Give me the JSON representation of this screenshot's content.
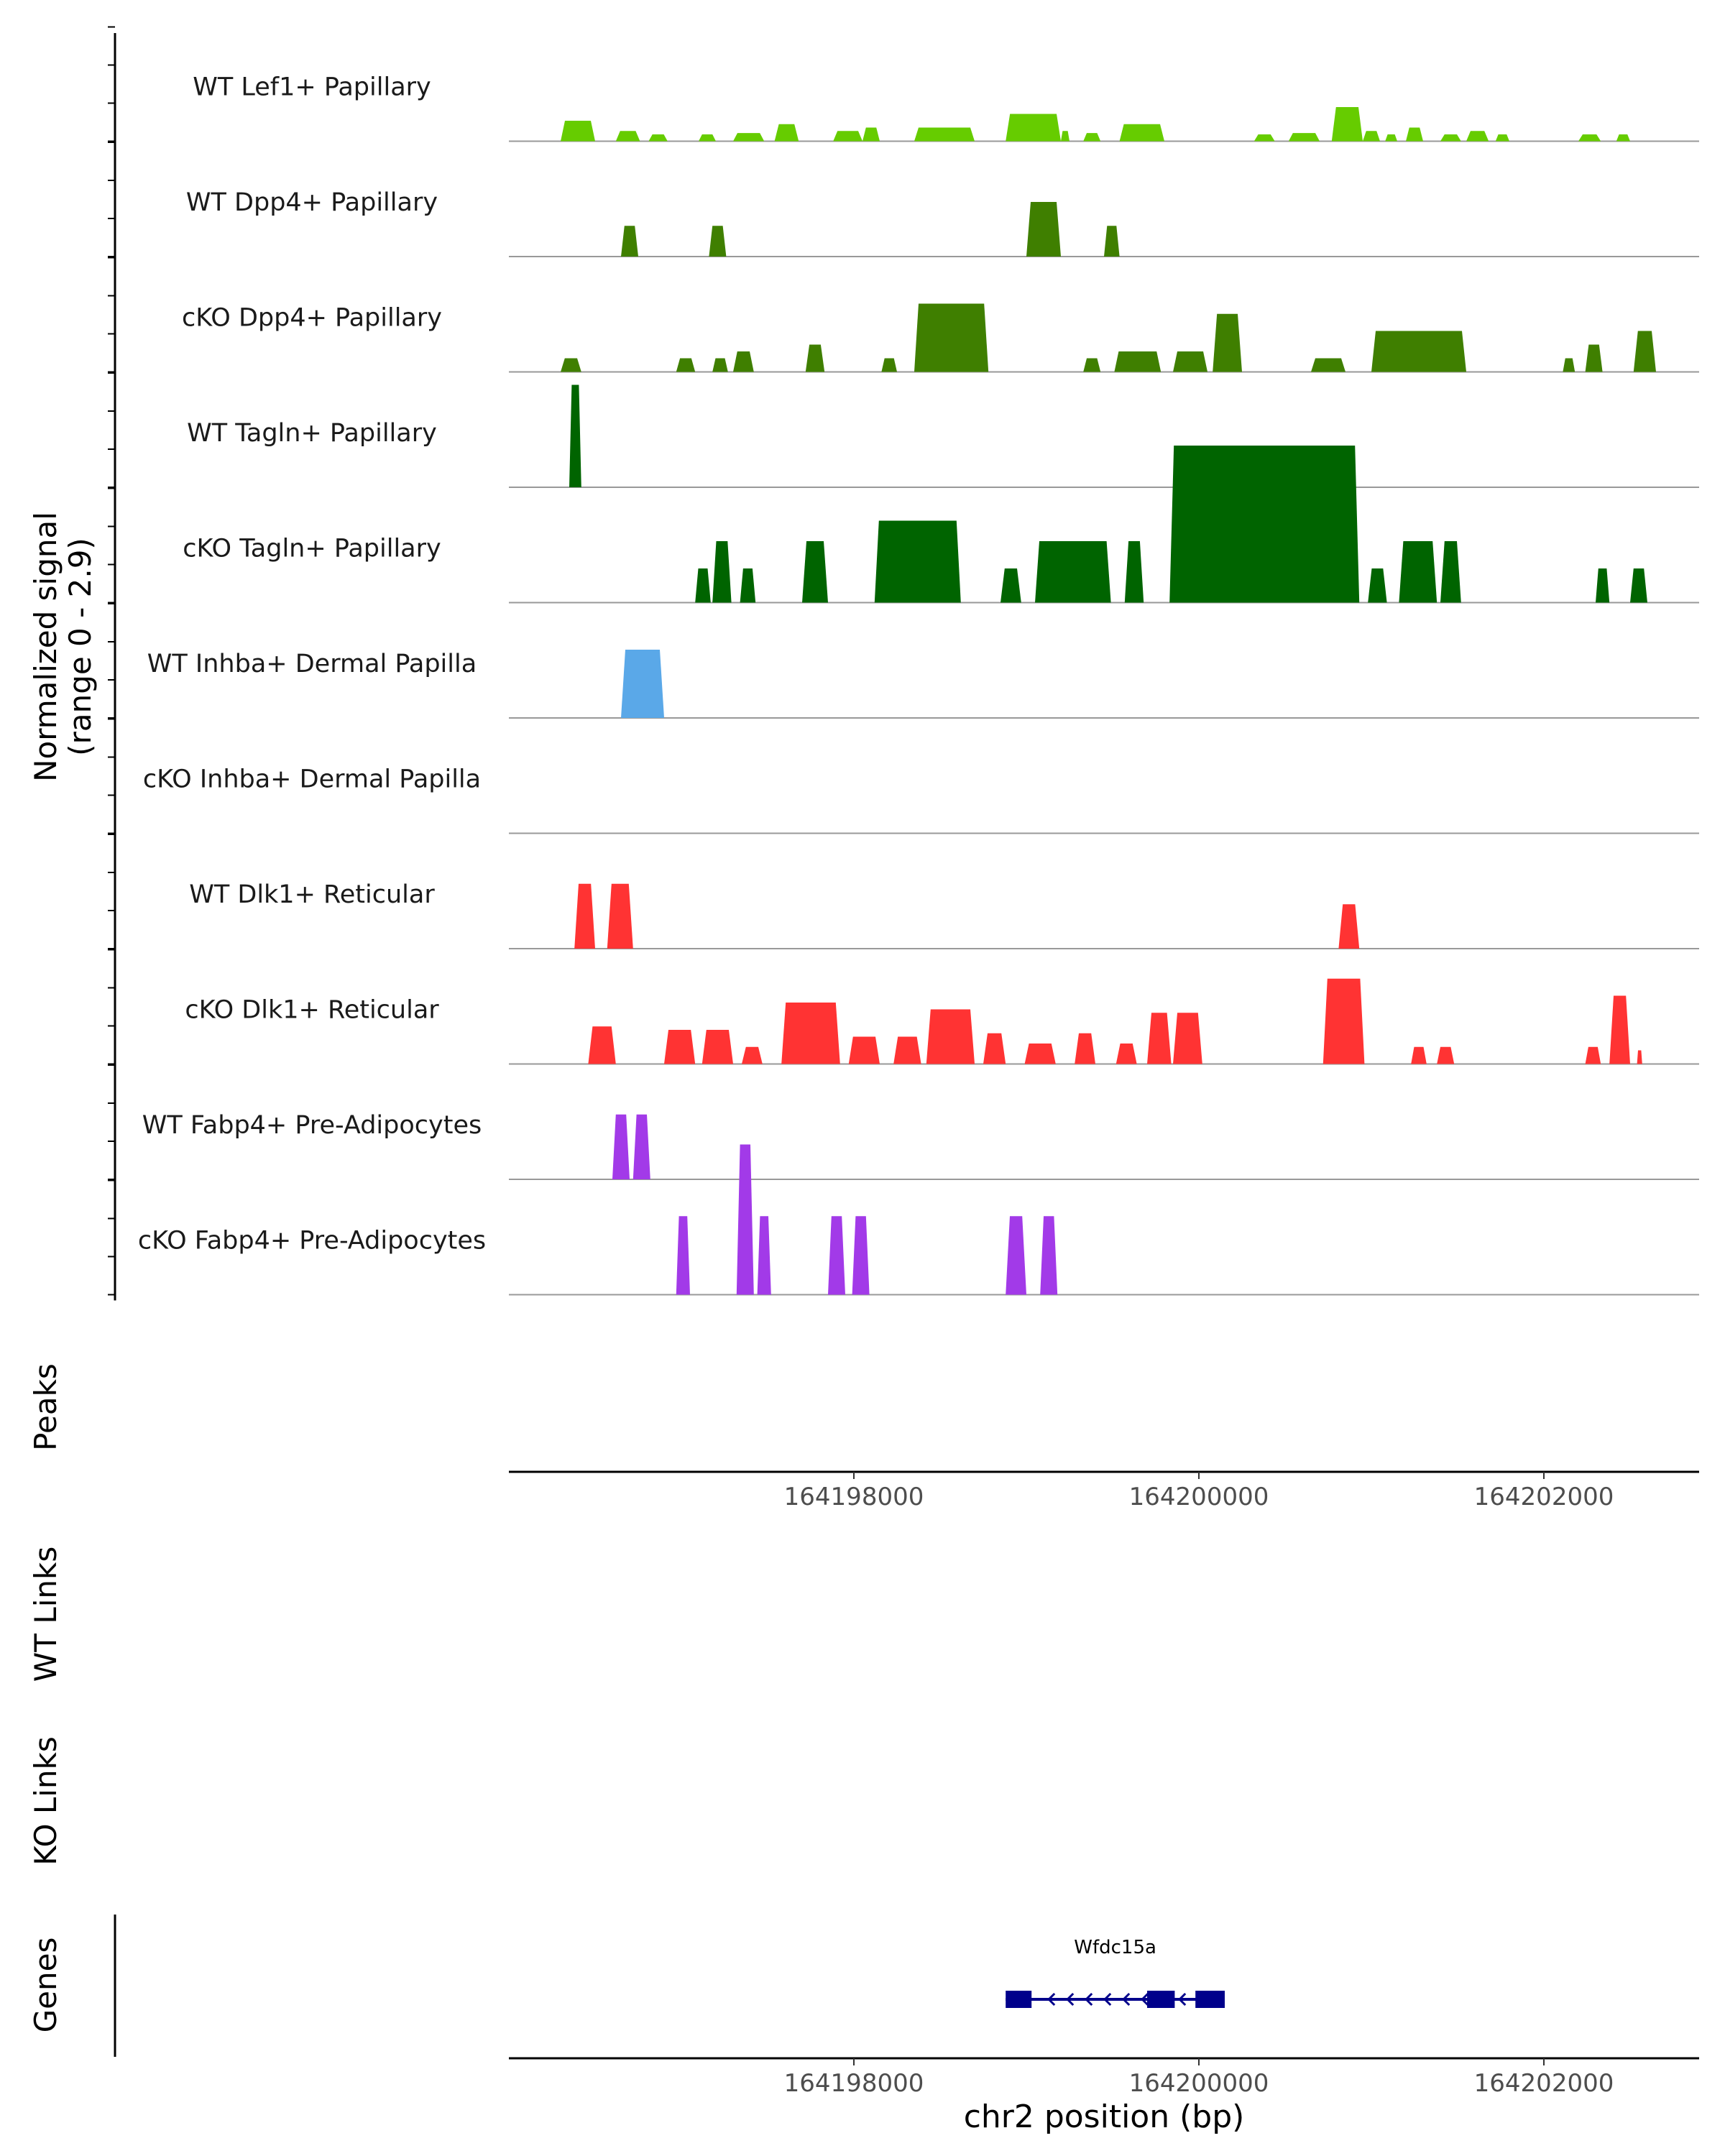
{
  "chart_data": {
    "type": "area",
    "title": "",
    "xlabel": "chr2 position (bp)",
    "x_range": [
      164196000,
      164202900
    ],
    "x_ticks": [
      "164198000",
      "164200000",
      "164202000"
    ],
    "y_axis_label": "Normalized signal",
    "y_axis_sublabel": "(range 0 - 2.9)",
    "y_range": [
      0,
      2.9
    ],
    "colors": {
      "lef1": "#66cc00",
      "dpp4": "#3f7f00",
      "tagln": "#006400",
      "inhba": "#5aa8e8",
      "dlk1": "#ff3333",
      "fabp4": "#a23ae8",
      "gene": "#00008b",
      "baseline": "#999999",
      "axis": "#000000"
    },
    "tracks": [
      {
        "name": "WT Lef1+ Papillary",
        "color_key": "lef1",
        "peaks": [
          [
            164196300,
            164196500,
            0.3
          ],
          [
            164196620,
            164196760,
            0.15
          ],
          [
            164196810,
            164196920,
            0.1
          ],
          [
            164197100,
            164197200,
            0.1
          ],
          [
            164197300,
            164197480,
            0.12
          ],
          [
            164197540,
            164197680,
            0.25
          ],
          [
            164197880,
            164198050,
            0.15
          ],
          [
            164198050,
            164198150,
            0.2
          ],
          [
            164198350,
            164198700,
            0.2
          ],
          [
            164198880,
            164199200,
            0.4
          ],
          [
            164199200,
            164199250,
            0.15
          ],
          [
            164199330,
            164199430,
            0.12
          ],
          [
            164199540,
            164199800,
            0.25
          ],
          [
            164200320,
            164200440,
            0.1
          ],
          [
            164200520,
            164200700,
            0.12
          ],
          [
            164200770,
            164200950,
            0.5
          ],
          [
            164200950,
            164201050,
            0.15
          ],
          [
            164201080,
            164201150,
            0.1
          ],
          [
            164201200,
            164201300,
            0.2
          ],
          [
            164201400,
            164201520,
            0.1
          ],
          [
            164201550,
            164201680,
            0.15
          ],
          [
            164201720,
            164201800,
            0.1
          ],
          [
            164202200,
            164202330,
            0.1
          ],
          [
            164202420,
            164202500,
            0.1
          ]
        ]
      },
      {
        "name": "WT Dpp4+ Papillary",
        "color_key": "dpp4",
        "peaks": [
          [
            164196650,
            164196750,
            0.45
          ],
          [
            164197160,
            164197260,
            0.45
          ],
          [
            164199000,
            164199200,
            0.8
          ],
          [
            164199450,
            164199540,
            0.45
          ]
        ]
      },
      {
        "name": "cKO Dpp4+ Papillary",
        "color_key": "dpp4",
        "peaks": [
          [
            164196300,
            164196420,
            0.2
          ],
          [
            164196970,
            164197080,
            0.2
          ],
          [
            164197180,
            164197270,
            0.2
          ],
          [
            164197300,
            164197420,
            0.3
          ],
          [
            164197720,
            164197830,
            0.4
          ],
          [
            164198160,
            164198250,
            0.2
          ],
          [
            164198350,
            164198780,
            1.0
          ],
          [
            164199330,
            164199430,
            0.2
          ],
          [
            164199510,
            164199780,
            0.3
          ],
          [
            164199850,
            164200050,
            0.3
          ],
          [
            164200080,
            164200250,
            0.85
          ],
          [
            164200650,
            164200850,
            0.2
          ],
          [
            164201000,
            164201550,
            0.6
          ],
          [
            164202110,
            164202180,
            0.2
          ],
          [
            164202240,
            164202340,
            0.4
          ],
          [
            164202520,
            164202650,
            0.6
          ]
        ]
      },
      {
        "name": "WT Tagln+ Papillary",
        "color_key": "tagln",
        "peaks": [
          [
            164196350,
            164196420,
            1.5
          ]
        ]
      },
      {
        "name": "cKO Tagln+ Papillary",
        "color_key": "tagln",
        "peaks": [
          [
            164197080,
            164197170,
            0.5
          ],
          [
            164197180,
            164197290,
            0.9
          ],
          [
            164197340,
            164197430,
            0.5
          ],
          [
            164197700,
            164197850,
            0.9
          ],
          [
            164198120,
            164198620,
            1.2
          ],
          [
            164198850,
            164198970,
            0.5
          ],
          [
            164199050,
            164199490,
            0.9
          ],
          [
            164199570,
            164199680,
            0.9
          ],
          [
            164199830,
            164200930,
            2.3
          ],
          [
            164200980,
            164201090,
            0.5
          ],
          [
            164201160,
            164201380,
            0.9
          ],
          [
            164201400,
            164201520,
            0.9
          ],
          [
            164202300,
            164202380,
            0.5
          ],
          [
            164202500,
            164202600,
            0.5
          ]
        ]
      },
      {
        "name": "WT Inhba+ Dermal Papilla",
        "color_key": "inhba",
        "peaks": [
          [
            164196650,
            164196900,
            1.0
          ]
        ]
      },
      {
        "name": "cKO Inhba+ Dermal Papilla",
        "color_key": "inhba",
        "peaks": []
      },
      {
        "name": "WT Dlk1+ Reticular",
        "color_key": "dlk1",
        "peaks": [
          [
            164196380,
            164196500,
            0.95
          ],
          [
            164196570,
            164196720,
            0.95
          ],
          [
            164200810,
            164200930,
            0.65
          ]
        ]
      },
      {
        "name": "cKO Dlk1+ Reticular",
        "color_key": "dlk1",
        "peaks": [
          [
            164196460,
            164196620,
            0.55
          ],
          [
            164196900,
            164197080,
            0.5
          ],
          [
            164197120,
            164197300,
            0.5
          ],
          [
            164197350,
            164197470,
            0.25
          ],
          [
            164197580,
            164197920,
            0.9
          ],
          [
            164197970,
            164198150,
            0.4
          ],
          [
            164198230,
            164198390,
            0.4
          ],
          [
            164198420,
            164198700,
            0.8
          ],
          [
            164198750,
            164198880,
            0.45
          ],
          [
            164198990,
            164199170,
            0.3
          ],
          [
            164199280,
            164199400,
            0.45
          ],
          [
            164199520,
            164199640,
            0.3
          ],
          [
            164199700,
            164199840,
            0.75
          ],
          [
            164199850,
            164200020,
            0.75
          ],
          [
            164200720,
            164200960,
            1.25
          ],
          [
            164201230,
            164201320,
            0.25
          ],
          [
            164201380,
            164201480,
            0.25
          ],
          [
            164202240,
            164202330,
            0.25
          ],
          [
            164202380,
            164202500,
            1.0
          ],
          [
            164202540,
            164202570,
            0.2
          ]
        ]
      },
      {
        "name": "WT Fabp4+ Pre-Adipocytes",
        "color_key": "fabp4",
        "peaks": [
          [
            164196600,
            164196700,
            0.95
          ],
          [
            164196720,
            164196820,
            0.95
          ]
        ]
      },
      {
        "name": "cKO Fabp4+ Pre-Adipocytes",
        "color_key": "fabp4",
        "peaks": [
          [
            164196970,
            164197050,
            1.15
          ],
          [
            164197320,
            164197420,
            2.2
          ],
          [
            164197440,
            164197520,
            1.15
          ],
          [
            164197850,
            164197950,
            1.15
          ],
          [
            164197990,
            164198090,
            1.15
          ],
          [
            164198880,
            164199000,
            1.15
          ],
          [
            164199080,
            164199180,
            1.15
          ]
        ]
      }
    ],
    "panels": [
      "Peaks",
      "WT Links",
      "KO Links",
      "Genes"
    ],
    "gene": {
      "name": "Wfdc15a",
      "strand": "-",
      "start": 164198880,
      "end": 164200150,
      "exons": [
        [
          164198880,
          164199030
        ],
        [
          164199700,
          164199860
        ],
        [
          164199980,
          164200150
        ]
      ]
    }
  }
}
